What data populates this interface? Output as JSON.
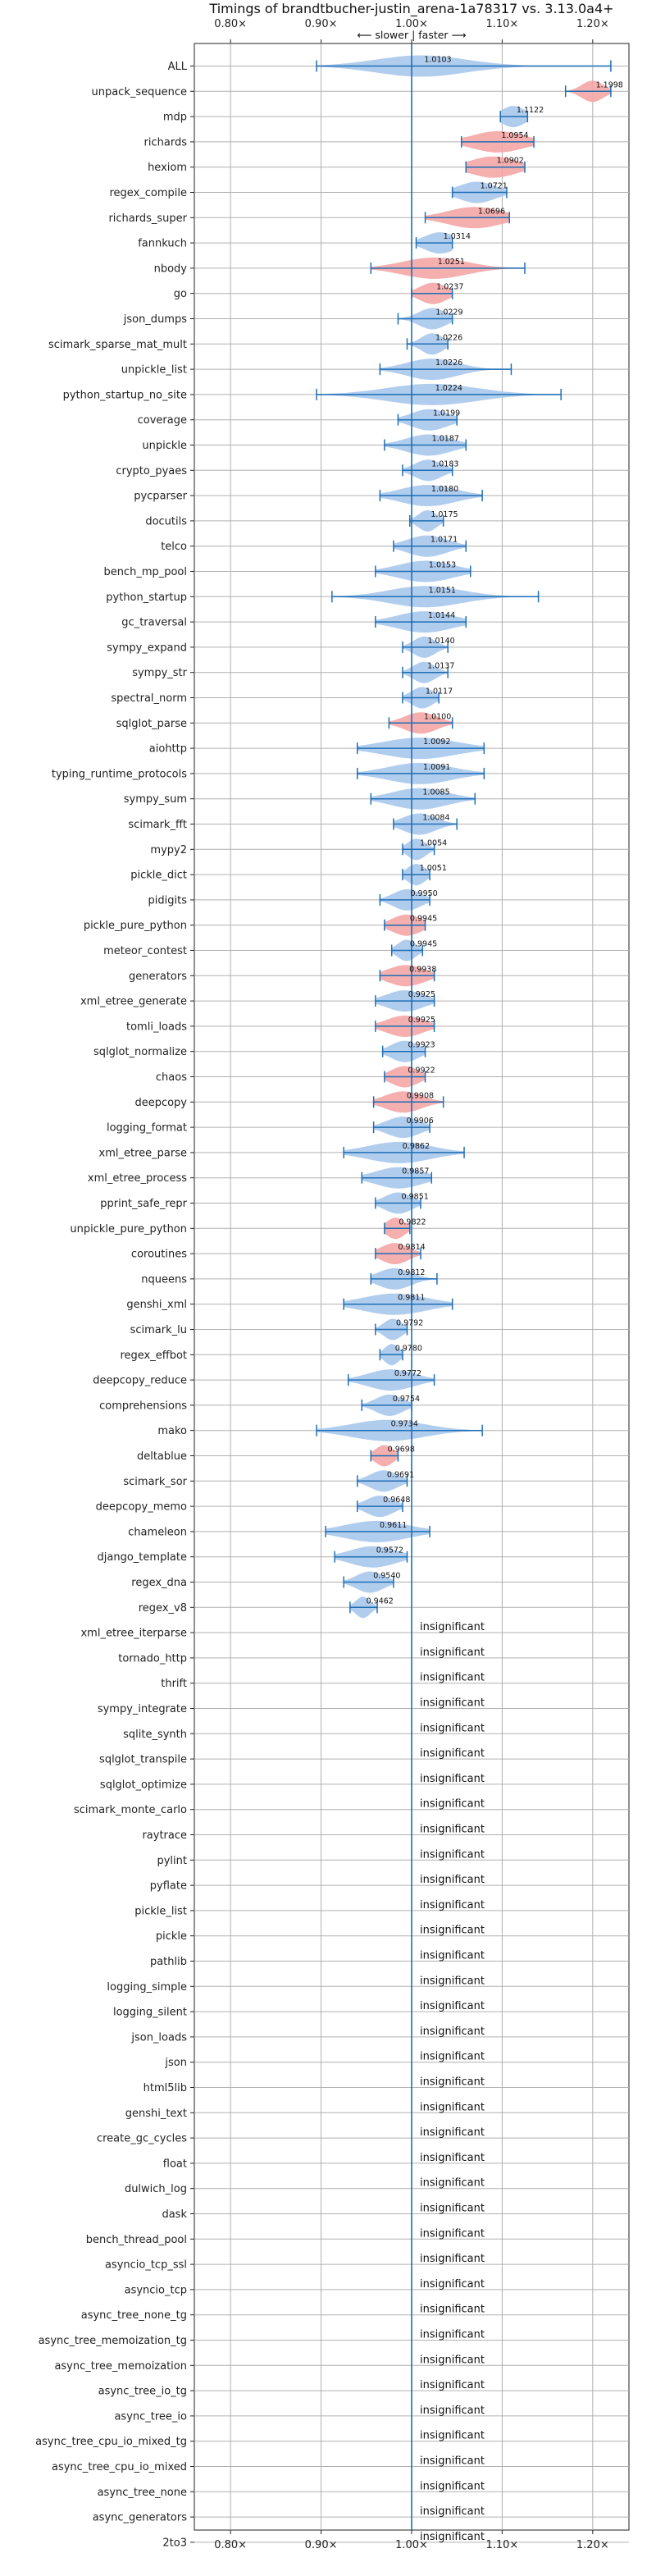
{
  "chart_data": {
    "type": "violin",
    "title": "Timings of brandtbucher-justin_arena-1a78317 vs. 3.13.0a4+",
    "direction_label": "⟵ slower | faster ⟶",
    "xlim": [
      0.76,
      1.24
    ],
    "xticks": [
      0.8,
      0.9,
      1.0,
      1.1,
      1.2
    ],
    "xtick_labels": [
      "0.80×",
      "0.90×",
      "1.00×",
      "1.10×",
      "1.20×"
    ],
    "reference_line": 1.0,
    "insignificant_label": "insignificant",
    "colors": {
      "faster": "#a9c8ec",
      "slower": "#f4a6a6",
      "line": "#1f6fb5",
      "grid": "#b0b0b0"
    },
    "benchmarks": [
      {
        "name": "ALL",
        "value": 1.0103,
        "label": "1.0103",
        "min": 0.895,
        "max": 1.22,
        "spread": 0.05,
        "status": "faster"
      },
      {
        "name": "unpack_sequence",
        "value": 1.1998,
        "label": "1.1998",
        "min": 1.17,
        "max": 1.22,
        "spread": 0.012,
        "status": "slower"
      },
      {
        "name": "mdp",
        "value": 1.1122,
        "label": "1.1122",
        "min": 1.098,
        "max": 1.128,
        "spread": 0.013,
        "status": "faster"
      },
      {
        "name": "richards",
        "value": 1.0954,
        "label": "1.0954",
        "min": 1.055,
        "max": 1.135,
        "spread": 0.028,
        "status": "slower"
      },
      {
        "name": "hexiom",
        "value": 1.0902,
        "label": "1.0902",
        "min": 1.06,
        "max": 1.125,
        "spread": 0.025,
        "status": "slower"
      },
      {
        "name": "regex_compile",
        "value": 1.0721,
        "label": "1.0721",
        "min": 1.045,
        "max": 1.105,
        "spread": 0.02,
        "status": "faster"
      },
      {
        "name": "richards_super",
        "value": 1.0696,
        "label": "1.0696",
        "min": 1.015,
        "max": 1.108,
        "spread": 0.03,
        "status": "slower"
      },
      {
        "name": "fannkuch",
        "value": 1.0314,
        "label": "1.0314",
        "min": 1.005,
        "max": 1.045,
        "spread": 0.017,
        "status": "faster"
      },
      {
        "name": "nbody",
        "value": 1.0251,
        "label": "1.0251",
        "min": 0.955,
        "max": 1.125,
        "spread": 0.035,
        "status": "slower"
      },
      {
        "name": "go",
        "value": 1.0237,
        "label": "1.0237",
        "min": 1.0,
        "max": 1.045,
        "spread": 0.015,
        "status": "slower"
      },
      {
        "name": "json_dumps",
        "value": 1.0229,
        "label": "1.0229",
        "min": 0.985,
        "max": 1.045,
        "spread": 0.015,
        "status": "faster"
      },
      {
        "name": "scimark_sparse_mat_mult",
        "value": 1.0226,
        "label": "1.0226",
        "min": 0.995,
        "max": 1.04,
        "spread": 0.012,
        "status": "faster"
      },
      {
        "name": "unpickle_list",
        "value": 1.0226,
        "label": "1.0226",
        "min": 0.965,
        "max": 1.11,
        "spread": 0.028,
        "status": "faster"
      },
      {
        "name": "python_startup_no_site",
        "value": 1.0224,
        "label": "1.0224",
        "min": 0.895,
        "max": 1.165,
        "spread": 0.05,
        "status": "faster"
      },
      {
        "name": "coverage",
        "value": 1.0199,
        "label": "1.0199",
        "min": 0.985,
        "max": 1.05,
        "spread": 0.02,
        "status": "faster"
      },
      {
        "name": "unpickle",
        "value": 1.0187,
        "label": "1.0187",
        "min": 0.97,
        "max": 1.06,
        "spread": 0.025,
        "status": "faster"
      },
      {
        "name": "crypto_pyaes",
        "value": 1.0183,
        "label": "1.0183",
        "min": 0.99,
        "max": 1.045,
        "spread": 0.015,
        "status": "faster"
      },
      {
        "name": "pycparser",
        "value": 1.018,
        "label": "1.0180",
        "min": 0.965,
        "max": 1.078,
        "spread": 0.03,
        "status": "faster"
      },
      {
        "name": "docutils",
        "value": 1.0175,
        "label": "1.0175",
        "min": 0.998,
        "max": 1.035,
        "spread": 0.01,
        "status": "faster"
      },
      {
        "name": "telco",
        "value": 1.0171,
        "label": "1.0171",
        "min": 0.98,
        "max": 1.06,
        "spread": 0.022,
        "status": "faster"
      },
      {
        "name": "bench_mp_pool",
        "value": 1.0153,
        "label": "1.0153",
        "min": 0.96,
        "max": 1.065,
        "spread": 0.03,
        "status": "faster"
      },
      {
        "name": "python_startup",
        "value": 1.0151,
        "label": "1.0151",
        "min": 0.912,
        "max": 1.14,
        "spread": 0.04,
        "status": "faster"
      },
      {
        "name": "gc_traversal",
        "value": 1.0144,
        "label": "1.0144",
        "min": 0.96,
        "max": 1.06,
        "spread": 0.03,
        "status": "faster"
      },
      {
        "name": "sympy_expand",
        "value": 1.014,
        "label": "1.0140",
        "min": 0.99,
        "max": 1.04,
        "spread": 0.012,
        "status": "faster"
      },
      {
        "name": "sympy_str",
        "value": 1.0137,
        "label": "1.0137",
        "min": 0.99,
        "max": 1.04,
        "spread": 0.012,
        "status": "faster"
      },
      {
        "name": "spectral_norm",
        "value": 1.0117,
        "label": "1.0117",
        "min": 0.99,
        "max": 1.03,
        "spread": 0.012,
        "status": "faster"
      },
      {
        "name": "sqlglot_parse",
        "value": 1.01,
        "label": "1.0100",
        "min": 0.975,
        "max": 1.045,
        "spread": 0.018,
        "status": "slower"
      },
      {
        "name": "aiohttp",
        "value": 1.0092,
        "label": "1.0092",
        "min": 0.94,
        "max": 1.08,
        "spread": 0.04,
        "status": "faster"
      },
      {
        "name": "typing_runtime_protocols",
        "value": 1.0091,
        "label": "1.0091",
        "min": 0.94,
        "max": 1.08,
        "spread": 0.035,
        "status": "faster"
      },
      {
        "name": "sympy_sum",
        "value": 1.0085,
        "label": "1.0085",
        "min": 0.955,
        "max": 1.07,
        "spread": 0.03,
        "status": "faster"
      },
      {
        "name": "scimark_fft",
        "value": 1.0084,
        "label": "1.0084",
        "min": 0.98,
        "max": 1.05,
        "spread": 0.018,
        "status": "faster"
      },
      {
        "name": "mypy2",
        "value": 1.0054,
        "label": "1.0054",
        "min": 0.99,
        "max": 1.025,
        "spread": 0.01,
        "status": "faster"
      },
      {
        "name": "pickle_dict",
        "value": 1.0051,
        "label": "1.0051",
        "min": 0.99,
        "max": 1.02,
        "spread": 0.01,
        "status": "faster"
      },
      {
        "name": "pidigits",
        "value": 0.995,
        "label": "0.9950",
        "min": 0.965,
        "max": 1.02,
        "spread": 0.015,
        "status": "faster"
      },
      {
        "name": "pickle_pure_python",
        "value": 0.9945,
        "label": "0.9945",
        "min": 0.97,
        "max": 1.015,
        "spread": 0.016,
        "status": "slower"
      },
      {
        "name": "meteor_contest",
        "value": 0.9945,
        "label": "0.9945",
        "min": 0.978,
        "max": 1.012,
        "spread": 0.01,
        "status": "faster"
      },
      {
        "name": "generators",
        "value": 0.9938,
        "label": "0.9938",
        "min": 0.965,
        "max": 1.025,
        "spread": 0.02,
        "status": "slower"
      },
      {
        "name": "xml_etree_generate",
        "value": 0.9925,
        "label": "0.9925",
        "min": 0.96,
        "max": 1.025,
        "spread": 0.02,
        "status": "faster"
      },
      {
        "name": "tomli_loads",
        "value": 0.9925,
        "label": "0.9925",
        "min": 0.96,
        "max": 1.025,
        "spread": 0.02,
        "status": "slower"
      },
      {
        "name": "sqlglot_normalize",
        "value": 0.9923,
        "label": "0.9923",
        "min": 0.968,
        "max": 1.015,
        "spread": 0.015,
        "status": "faster"
      },
      {
        "name": "chaos",
        "value": 0.9922,
        "label": "0.9922",
        "min": 0.97,
        "max": 1.015,
        "spread": 0.015,
        "status": "slower"
      },
      {
        "name": "deepcopy",
        "value": 0.9908,
        "label": "0.9908",
        "min": 0.958,
        "max": 1.035,
        "spread": 0.02,
        "status": "slower"
      },
      {
        "name": "logging_format",
        "value": 0.9906,
        "label": "0.9906",
        "min": 0.958,
        "max": 1.02,
        "spread": 0.018,
        "status": "faster"
      },
      {
        "name": "xml_etree_parse",
        "value": 0.9862,
        "label": "0.9862",
        "min": 0.925,
        "max": 1.058,
        "spread": 0.035,
        "status": "faster"
      },
      {
        "name": "xml_etree_process",
        "value": 0.9857,
        "label": "0.9857",
        "min": 0.945,
        "max": 1.022,
        "spread": 0.025,
        "status": "faster"
      },
      {
        "name": "pprint_safe_repr",
        "value": 0.9851,
        "label": "0.9851",
        "min": 0.96,
        "max": 1.01,
        "spread": 0.015,
        "status": "faster"
      },
      {
        "name": "unpickle_pure_python",
        "value": 0.9822,
        "label": "0.9822",
        "min": 0.97,
        "max": 0.998,
        "spread": 0.01,
        "status": "slower"
      },
      {
        "name": "coroutines",
        "value": 0.9814,
        "label": "0.9814",
        "min": 0.96,
        "max": 1.01,
        "spread": 0.015,
        "status": "slower"
      },
      {
        "name": "nqueens",
        "value": 0.9812,
        "label": "0.9812",
        "min": 0.955,
        "max": 1.028,
        "spread": 0.018,
        "status": "faster"
      },
      {
        "name": "genshi_xml",
        "value": 0.9811,
        "label": "0.9811",
        "min": 0.925,
        "max": 1.045,
        "spread": 0.035,
        "status": "faster"
      },
      {
        "name": "scimark_lu",
        "value": 0.9792,
        "label": "0.9792",
        "min": 0.96,
        "max": 0.995,
        "spread": 0.01,
        "status": "faster"
      },
      {
        "name": "regex_effbot",
        "value": 0.978,
        "label": "0.9780",
        "min": 0.965,
        "max": 0.99,
        "spread": 0.008,
        "status": "faster"
      },
      {
        "name": "deepcopy_reduce",
        "value": 0.9772,
        "label": "0.9772",
        "min": 0.93,
        "max": 1.025,
        "spread": 0.025,
        "status": "faster"
      },
      {
        "name": "comprehensions",
        "value": 0.9754,
        "label": "0.9754",
        "min": 0.945,
        "max": 1.0,
        "spread": 0.015,
        "status": "faster"
      },
      {
        "name": "mako",
        "value": 0.9734,
        "label": "0.9734",
        "min": 0.895,
        "max": 1.078,
        "spread": 0.04,
        "status": "faster"
      },
      {
        "name": "deltablue",
        "value": 0.9698,
        "label": "0.9698",
        "min": 0.955,
        "max": 0.985,
        "spread": 0.01,
        "status": "slower"
      },
      {
        "name": "scimark_sor",
        "value": 0.9691,
        "label": "0.9691",
        "min": 0.94,
        "max": 0.995,
        "spread": 0.015,
        "status": "faster"
      },
      {
        "name": "deepcopy_memo",
        "value": 0.9648,
        "label": "0.9648",
        "min": 0.94,
        "max": 0.99,
        "spread": 0.015,
        "status": "faster"
      },
      {
        "name": "chameleon",
        "value": 0.9611,
        "label": "0.9611",
        "min": 0.905,
        "max": 1.02,
        "spread": 0.035,
        "status": "faster"
      },
      {
        "name": "django_template",
        "value": 0.9572,
        "label": "0.9572",
        "min": 0.915,
        "max": 0.995,
        "spread": 0.025,
        "status": "faster"
      },
      {
        "name": "regex_dna",
        "value": 0.954,
        "label": "0.9540",
        "min": 0.925,
        "max": 0.98,
        "spread": 0.015,
        "status": "faster"
      },
      {
        "name": "regex_v8",
        "value": 0.9462,
        "label": "0.9462",
        "min": 0.932,
        "max": 0.962,
        "spread": 0.008,
        "status": "faster"
      },
      {
        "name": "xml_etree_iterparse",
        "status": "insignificant"
      },
      {
        "name": "tornado_http",
        "status": "insignificant"
      },
      {
        "name": "thrift",
        "status": "insignificant"
      },
      {
        "name": "sympy_integrate",
        "status": "insignificant"
      },
      {
        "name": "sqlite_synth",
        "status": "insignificant"
      },
      {
        "name": "sqlglot_transpile",
        "status": "insignificant"
      },
      {
        "name": "sqlglot_optimize",
        "status": "insignificant"
      },
      {
        "name": "scimark_monte_carlo",
        "status": "insignificant"
      },
      {
        "name": "raytrace",
        "status": "insignificant"
      },
      {
        "name": "pylint",
        "status": "insignificant"
      },
      {
        "name": "pyflate",
        "status": "insignificant"
      },
      {
        "name": "pickle_list",
        "status": "insignificant"
      },
      {
        "name": "pickle",
        "status": "insignificant"
      },
      {
        "name": "pathlib",
        "status": "insignificant"
      },
      {
        "name": "logging_simple",
        "status": "insignificant"
      },
      {
        "name": "logging_silent",
        "status": "insignificant"
      },
      {
        "name": "json_loads",
        "status": "insignificant"
      },
      {
        "name": "json",
        "status": "insignificant"
      },
      {
        "name": "html5lib",
        "status": "insignificant"
      },
      {
        "name": "genshi_text",
        "status": "insignificant"
      },
      {
        "name": "create_gc_cycles",
        "status": "insignificant"
      },
      {
        "name": "float",
        "status": "insignificant"
      },
      {
        "name": "dulwich_log",
        "status": "insignificant"
      },
      {
        "name": "dask",
        "status": "insignificant"
      },
      {
        "name": "bench_thread_pool",
        "status": "insignificant"
      },
      {
        "name": "asyncio_tcp_ssl",
        "status": "insignificant"
      },
      {
        "name": "asyncio_tcp",
        "status": "insignificant"
      },
      {
        "name": "async_tree_none_tg",
        "status": "insignificant"
      },
      {
        "name": "async_tree_memoization_tg",
        "status": "insignificant"
      },
      {
        "name": "async_tree_memoization",
        "status": "insignificant"
      },
      {
        "name": "async_tree_io_tg",
        "status": "insignificant"
      },
      {
        "name": "async_tree_io",
        "status": "insignificant"
      },
      {
        "name": "async_tree_cpu_io_mixed_tg",
        "status": "insignificant"
      },
      {
        "name": "async_tree_cpu_io_mixed",
        "status": "insignificant"
      },
      {
        "name": "async_tree_none",
        "status": "insignificant"
      },
      {
        "name": "async_generators",
        "status": "insignificant"
      },
      {
        "name": "2to3",
        "status": "insignificant"
      }
    ]
  }
}
